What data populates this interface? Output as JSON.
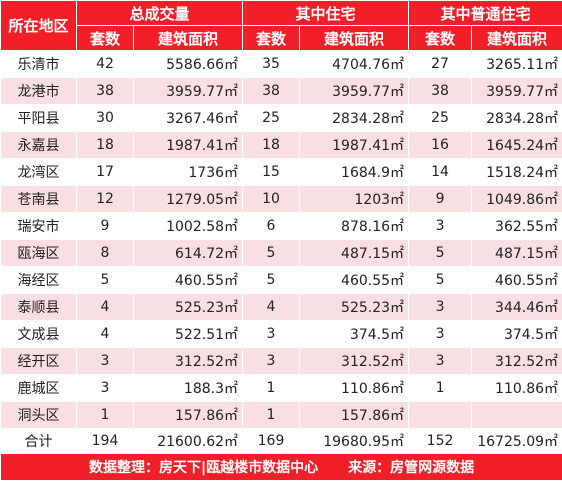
{
  "header": {
    "region": "所在地区",
    "groups": [
      "总成交量",
      "其中住宅",
      "其中普通住宅"
    ],
    "sub": [
      "套数",
      "建筑面积",
      "套数",
      "建筑面积",
      "套数",
      "建筑面积"
    ]
  },
  "rows": [
    {
      "name": "乐清市",
      "v": [
        "42",
        "5586.66㎡",
        "35",
        "4704.76㎡",
        "27",
        "3265.11㎡"
      ]
    },
    {
      "name": "龙港市",
      "v": [
        "38",
        "3959.77㎡",
        "38",
        "3959.77㎡",
        "38",
        "3959.77㎡"
      ]
    },
    {
      "name": "平阳县",
      "v": [
        "30",
        "3267.46㎡",
        "25",
        "2834.28㎡",
        "25",
        "2834.28㎡"
      ]
    },
    {
      "name": "永嘉县",
      "v": [
        "18",
        "1987.41㎡",
        "18",
        "1987.41㎡",
        "16",
        "1645.24㎡"
      ]
    },
    {
      "name": "龙湾区",
      "v": [
        "17",
        "1736㎡",
        "15",
        "1684.9㎡",
        "14",
        "1518.24㎡"
      ]
    },
    {
      "name": "苍南县",
      "v": [
        "12",
        "1279.05㎡",
        "10",
        "1203㎡",
        "9",
        "1049.86㎡"
      ]
    },
    {
      "name": "瑞安市",
      "v": [
        "9",
        "1002.58㎡",
        "6",
        "878.16㎡",
        "3",
        "362.55㎡"
      ]
    },
    {
      "name": "瓯海区",
      "v": [
        "8",
        "614.72㎡",
        "5",
        "487.15㎡",
        "5",
        "487.15㎡"
      ]
    },
    {
      "name": "海经区",
      "v": [
        "5",
        "460.55㎡",
        "5",
        "460.55㎡",
        "5",
        "460.55㎡"
      ]
    },
    {
      "name": "泰顺县",
      "v": [
        "4",
        "525.23㎡",
        "4",
        "525.23㎡",
        "3",
        "344.46㎡"
      ]
    },
    {
      "name": "文成县",
      "v": [
        "4",
        "522.51㎡",
        "3",
        "374.5㎡",
        "3",
        "374.5㎡"
      ]
    },
    {
      "name": "经开区",
      "v": [
        "3",
        "312.52㎡",
        "3",
        "312.52㎡",
        "3",
        "312.52㎡"
      ]
    },
    {
      "name": "鹿城区",
      "v": [
        "3",
        "188.3㎡",
        "1",
        "110.86㎡",
        "1",
        "110.86㎡"
      ]
    },
    {
      "name": "洞头区",
      "v": [
        "1",
        "157.86㎡",
        "1",
        "157.86㎡",
        "",
        ""
      ]
    }
  ],
  "total": {
    "name": "合计",
    "v": [
      "194",
      "21600.62㎡",
      "169",
      "19680.95㎡",
      "152",
      "16725.09㎡"
    ]
  },
  "footer": {
    "left": "数据整理：房天下|瓯越楼市数据中心",
    "right": "来源：房管网源数据"
  },
  "colors": {
    "header_bg": "#f11f27",
    "stripe": "#f9dfe2"
  }
}
